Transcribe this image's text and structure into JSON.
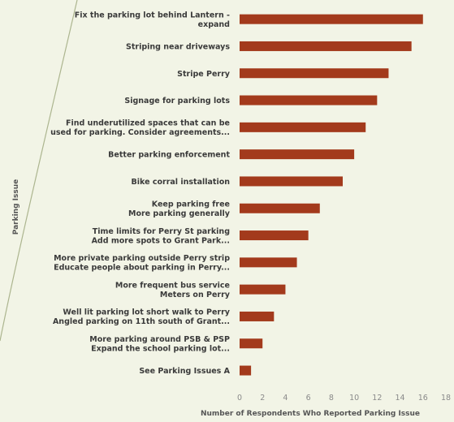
{
  "chart_data": {
    "type": "bar",
    "orientation": "horizontal",
    "categories": [
      [
        "Fix the parking lot behind Lantern -",
        "expand"
      ],
      [
        "Striping near driveways"
      ],
      [
        "Stripe Perry"
      ],
      [
        "Signage for parking lots"
      ],
      [
        "Find underutilized spaces that can be",
        "used for parking. Consider agreements..."
      ],
      [
        "Better parking enforcement"
      ],
      [
        "Bike corral installation"
      ],
      [
        "Keep parking free",
        "More parking generally"
      ],
      [
        "Time limits for Perry St parking",
        "Add more spots to Grant Park..."
      ],
      [
        "More private parking outside Perry strip",
        "Educate people about parking in Perry..."
      ],
      [
        "More frequent bus service",
        "Meters on Perry"
      ],
      [
        "Well lit parking lot short walk to Perry",
        "Angled parking on 11th south of Grant..."
      ],
      [
        "More parking around PSB & PSP",
        "Expand the school parking lot..."
      ],
      [
        "See Parking Issues A"
      ]
    ],
    "values": [
      16,
      15,
      13,
      12,
      11,
      10,
      9,
      7,
      6,
      5,
      4,
      3,
      2,
      1
    ],
    "xlim": [
      0,
      18
    ],
    "xticks": [
      "0",
      "2",
      "4",
      "6",
      "8",
      "10",
      "12",
      "14",
      "16",
      "18"
    ],
    "xlabel": "Number of Respondents Who Reported Parking Issue",
    "ylabel": "Parking Issue",
    "bar_color": "#a33a1c",
    "grid": false
  }
}
